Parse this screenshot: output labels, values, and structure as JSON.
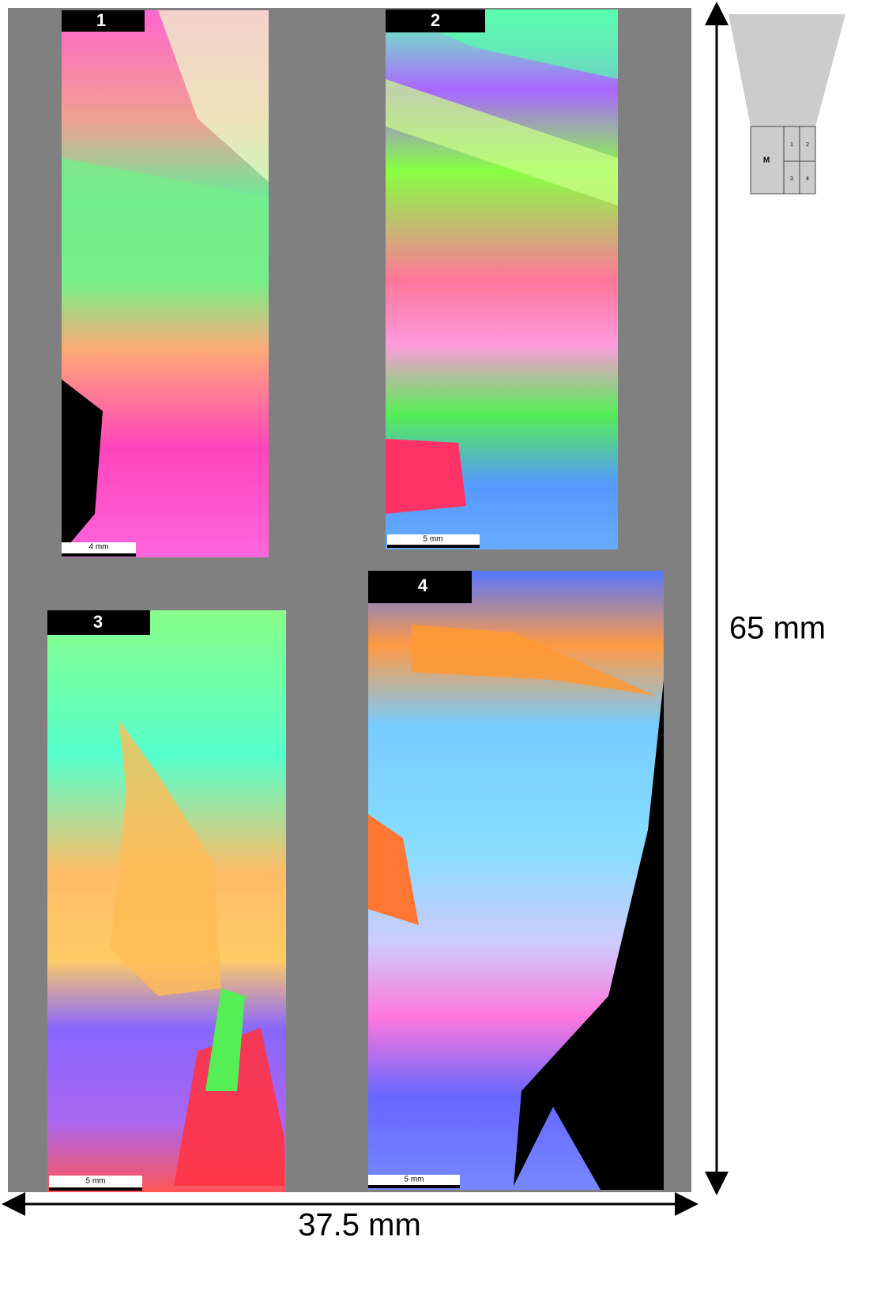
{
  "panels": [
    {
      "label": "1",
      "scale_bar": "4 mm"
    },
    {
      "label": "2",
      "scale_bar": "5 mm"
    },
    {
      "label": "3",
      "scale_bar": "5 mm"
    },
    {
      "label": "4",
      "scale_bar": "5 mm"
    }
  ],
  "dimensions": {
    "height": "65 mm",
    "width": "37.5 mm"
  },
  "schematic": {
    "main": "M",
    "cells": [
      "1",
      "2",
      "3",
      "4"
    ]
  }
}
